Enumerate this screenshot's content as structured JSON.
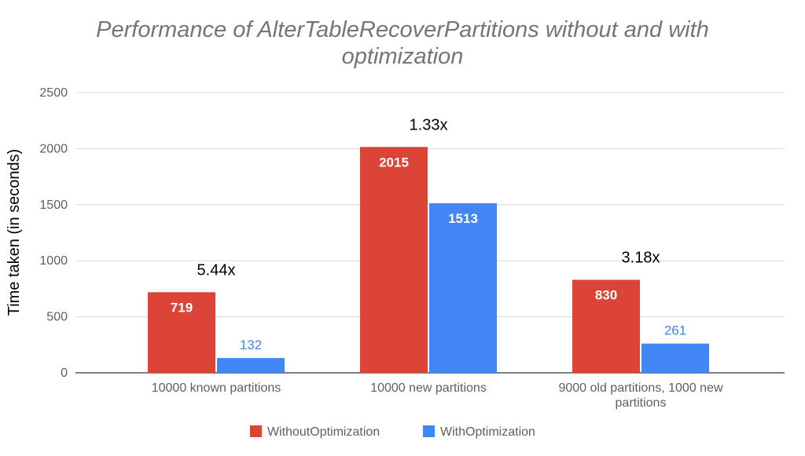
{
  "chart_data": {
    "type": "bar",
    "title_lines": [
      "Performance of AlterTableRecoverPartitions without and with",
      "optimization"
    ],
    "ylabel": "Time taken  (in seconds)",
    "xlabel": "",
    "ylim": [
      0,
      2500
    ],
    "yticks": [
      0,
      500,
      1000,
      1500,
      2000,
      2500
    ],
    "categories": [
      [
        "10000 known partitions"
      ],
      [
        "10000 new partitions"
      ],
      [
        "9000 old partitions, 1000 new",
        "partitions"
      ]
    ],
    "series": [
      {
        "name": "WithoutOptimization",
        "color": "#db4437",
        "values": [
          719,
          2015,
          830
        ]
      },
      {
        "name": "WithOptimization",
        "color": "#4285f4",
        "values": [
          132,
          1513,
          261
        ]
      }
    ],
    "annotations": [
      "5.44x",
      "1.33x",
      "3.18x"
    ],
    "grid": true,
    "legend": "bottom"
  }
}
